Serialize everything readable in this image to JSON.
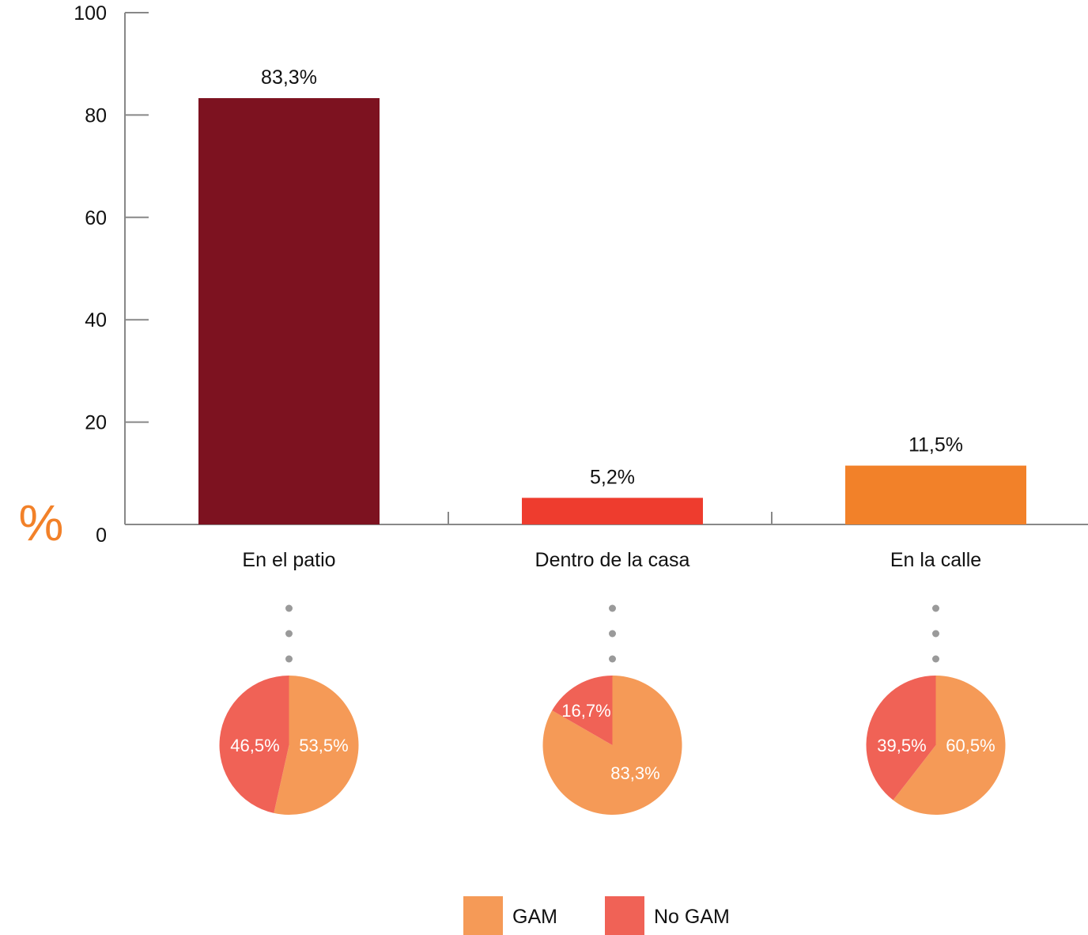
{
  "chart_data": [
    {
      "type": "bar",
      "categories": [
        "En el patio",
        "Dentro de la casa",
        "En la calle"
      ],
      "values": [
        83.3,
        5.2,
        11.5
      ],
      "value_labels": [
        "83,3%",
        "5,2%",
        "11,5%"
      ],
      "colors": [
        "#7d1220",
        "#ee3c2e",
        "#f28129"
      ],
      "ylabel": "%",
      "ylim": [
        0,
        100
      ],
      "yticks": [
        0,
        20,
        40,
        60,
        80,
        100
      ],
      "grid": false
    },
    {
      "type": "pie",
      "category": "En el patio",
      "slices": [
        {
          "name": "GAM",
          "value": 53.5,
          "label": "53,5%"
        },
        {
          "name": "No GAM",
          "value": 46.5,
          "label": "46,5%"
        }
      ]
    },
    {
      "type": "pie",
      "category": "Dentro de la casa",
      "slices": [
        {
          "name": "GAM",
          "value": 83.3,
          "label": "83,3%"
        },
        {
          "name": "No GAM",
          "value": 16.7,
          "label": "16,7%"
        }
      ]
    },
    {
      "type": "pie",
      "category": "En la calle",
      "slices": [
        {
          "name": "GAM",
          "value": 60.5,
          "label": "60,5%"
        },
        {
          "name": "No GAM",
          "value": 39.5,
          "label": "39,5%"
        }
      ]
    }
  ],
  "legend": {
    "placement": "bottom-center",
    "items": [
      {
        "name": "GAM",
        "color": "#f59a57"
      },
      {
        "name": "No GAM",
        "color": "#f06256"
      }
    ]
  },
  "colors": {
    "axis": "#888888",
    "unit": "#f28129",
    "connector_dots": "#9a9a9a"
  }
}
